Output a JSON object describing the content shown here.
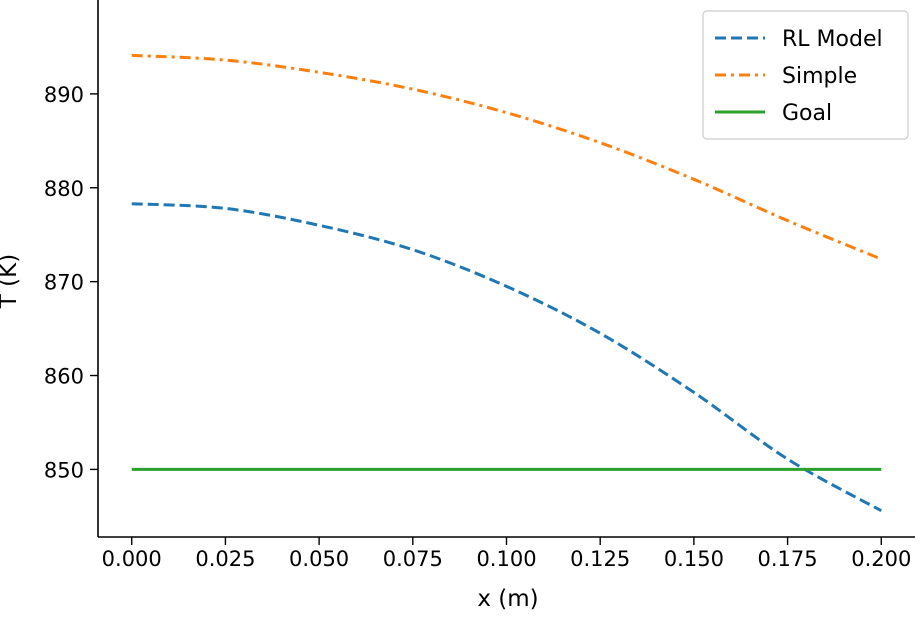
{
  "chart_data": {
    "type": "line",
    "title": "",
    "xlabel": "x (m)",
    "ylabel": "T (K)",
    "xlim": [
      -0.009,
      0.209
    ],
    "ylim": [
      842.8,
      900.0
    ],
    "x_ticks": [
      0.0,
      0.025,
      0.05,
      0.075,
      0.1,
      0.125,
      0.15,
      0.175,
      0.2
    ],
    "x_tick_labels": [
      "0.000",
      "0.025",
      "0.050",
      "0.075",
      "0.100",
      "0.125",
      "0.150",
      "0.175",
      "0.200"
    ],
    "y_ticks": [
      850,
      860,
      870,
      880,
      890
    ],
    "y_tick_labels": [
      "850",
      "860",
      "870",
      "880",
      "890"
    ],
    "grid": false,
    "legend_position": "top-right",
    "series": [
      {
        "name": "RL Model",
        "color": "#1f77b4",
        "style": "dashed",
        "x": [
          0.0,
          0.025,
          0.05,
          0.075,
          0.1,
          0.125,
          0.15,
          0.175,
          0.2
        ],
        "y": [
          878.3,
          877.8,
          876.0,
          873.4,
          869.5,
          864.5,
          858.2,
          851.1,
          845.6
        ]
      },
      {
        "name": "Simple",
        "color": "#ff7f0e",
        "style": "dashdot",
        "x": [
          0.0,
          0.025,
          0.05,
          0.075,
          0.1,
          0.125,
          0.15,
          0.175,
          0.2
        ],
        "y": [
          894.1,
          893.6,
          892.3,
          890.5,
          888.0,
          884.8,
          880.9,
          876.5,
          872.4
        ]
      },
      {
        "name": "Goal",
        "color": "#2ca02c",
        "style": "solid",
        "x": [
          0.0,
          0.2
        ],
        "y": [
          850.0,
          850.0
        ]
      }
    ]
  }
}
